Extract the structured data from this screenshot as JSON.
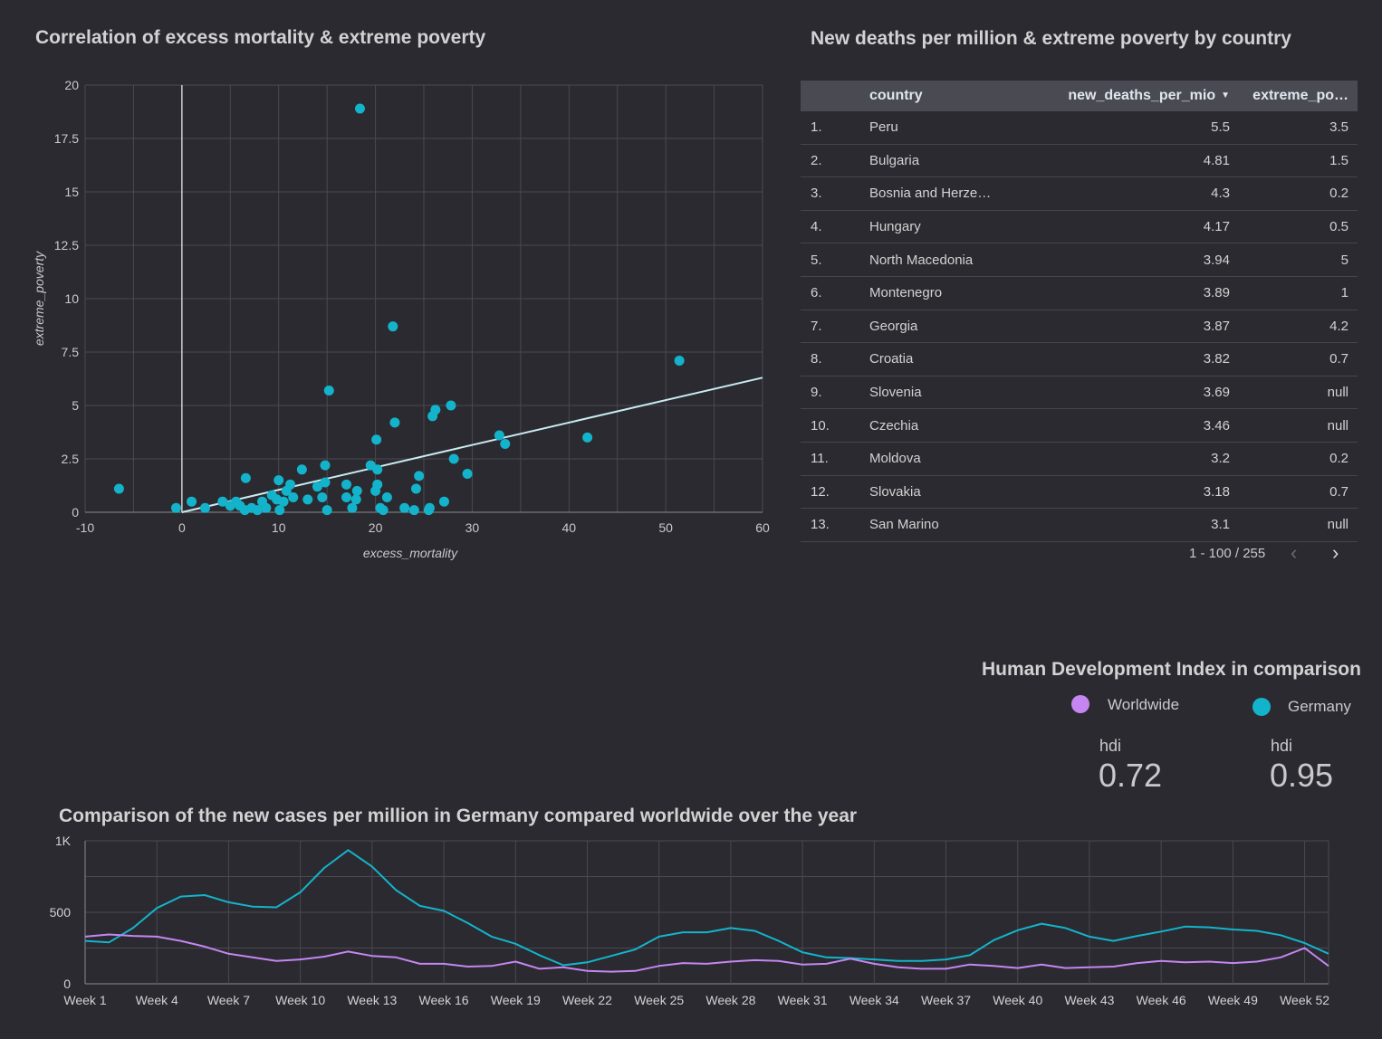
{
  "scatter": {
    "title": "Correlation of excess mortality & extreme poverty",
    "chart_data": {
      "type": "scatter",
      "xlabel": "excess_mortality",
      "ylabel": "extreme_poverty",
      "xlim": [
        -10,
        60
      ],
      "ylim": [
        0,
        20
      ],
      "x_ticks": [
        "-10",
        "0",
        "10",
        "20",
        "30",
        "40",
        "50",
        "60"
      ],
      "y_ticks": [
        "0",
        "2.5",
        "5",
        "7.5",
        "10",
        "12.5",
        "15",
        "17.5",
        "20"
      ],
      "points": [
        [
          -6.5,
          1.1
        ],
        [
          -0.6,
          0.2
        ],
        [
          1.0,
          0.5
        ],
        [
          2.4,
          0.2
        ],
        [
          4.2,
          0.5
        ],
        [
          5.0,
          0.3
        ],
        [
          5.6,
          0.5
        ],
        [
          6.0,
          0.3
        ],
        [
          6.5,
          0.1
        ],
        [
          6.6,
          1.6
        ],
        [
          7.2,
          0.2
        ],
        [
          7.8,
          0.1
        ],
        [
          8.3,
          0.5
        ],
        [
          8.7,
          0.2
        ],
        [
          9.3,
          0.8
        ],
        [
          9.8,
          0.6
        ],
        [
          10.0,
          1.5
        ],
        [
          10.1,
          0.1
        ],
        [
          10.5,
          0.5
        ],
        [
          10.8,
          1.0
        ],
        [
          11.2,
          1.3
        ],
        [
          11.5,
          0.7
        ],
        [
          12.4,
          2.0
        ],
        [
          13.0,
          0.6
        ],
        [
          14.0,
          1.2
        ],
        [
          14.5,
          0.7
        ],
        [
          14.8,
          2.2
        ],
        [
          14.8,
          1.4
        ],
        [
          15.0,
          0.1
        ],
        [
          15.2,
          5.7
        ],
        [
          17.0,
          0.7
        ],
        [
          17.0,
          1.3
        ],
        [
          17.6,
          0.2
        ],
        [
          18.0,
          0.6
        ],
        [
          18.1,
          1.0
        ],
        [
          18.4,
          18.9
        ],
        [
          19.5,
          2.2
        ],
        [
          20.0,
          1.0
        ],
        [
          20.2,
          1.3
        ],
        [
          20.1,
          3.4
        ],
        [
          20.2,
          2.0
        ],
        [
          20.5,
          0.2
        ],
        [
          20.8,
          0.1
        ],
        [
          21.2,
          0.7
        ],
        [
          21.8,
          8.7
        ],
        [
          22.0,
          4.2
        ],
        [
          23.0,
          0.2
        ],
        [
          24.0,
          0.1
        ],
        [
          24.2,
          1.1
        ],
        [
          24.5,
          1.7
        ],
        [
          25.5,
          0.1
        ],
        [
          25.6,
          0.2
        ],
        [
          25.9,
          4.5
        ],
        [
          26.2,
          4.8
        ],
        [
          27.1,
          0.5
        ],
        [
          27.8,
          5.0
        ],
        [
          28.1,
          2.5
        ],
        [
          29.5,
          1.8
        ],
        [
          32.8,
          3.6
        ],
        [
          33.4,
          3.2
        ],
        [
          41.9,
          3.5
        ],
        [
          51.4,
          7.1
        ]
      ],
      "trendline": [
        [
          0,
          0.0
        ],
        [
          60,
          6.3
        ]
      ]
    }
  },
  "table": {
    "title": "New deaths per million & extreme poverty by country",
    "columns": [
      "country",
      "new_deaths_per_mio",
      "extreme_po…"
    ],
    "rows": [
      {
        "idx": "1.",
        "country": "Peru",
        "new_deaths": "5.5",
        "extreme_poverty": "3.5"
      },
      {
        "idx": "2.",
        "country": "Bulgaria",
        "new_deaths": "4.81",
        "extreme_poverty": "1.5"
      },
      {
        "idx": "3.",
        "country": "Bosnia and Herze…",
        "new_deaths": "4.3",
        "extreme_poverty": "0.2"
      },
      {
        "idx": "4.",
        "country": "Hungary",
        "new_deaths": "4.17",
        "extreme_poverty": "0.5"
      },
      {
        "idx": "5.",
        "country": "North Macedonia",
        "new_deaths": "3.94",
        "extreme_poverty": "5"
      },
      {
        "idx": "6.",
        "country": "Montenegro",
        "new_deaths": "3.89",
        "extreme_poverty": "1"
      },
      {
        "idx": "7.",
        "country": "Georgia",
        "new_deaths": "3.87",
        "extreme_poverty": "4.2"
      },
      {
        "idx": "8.",
        "country": "Croatia",
        "new_deaths": "3.82",
        "extreme_poverty": "0.7"
      },
      {
        "idx": "9.",
        "country": "Slovenia",
        "new_deaths": "3.69",
        "extreme_poverty": "null"
      },
      {
        "idx": "10.",
        "country": "Czechia",
        "new_deaths": "3.46",
        "extreme_poverty": "null"
      },
      {
        "idx": "11.",
        "country": "Moldova",
        "new_deaths": "3.2",
        "extreme_poverty": "0.2"
      },
      {
        "idx": "12.",
        "country": "Slovakia",
        "new_deaths": "3.18",
        "extreme_poverty": "0.7"
      },
      {
        "idx": "13.",
        "country": "San Marino",
        "new_deaths": "3.1",
        "extreme_poverty": "null"
      }
    ],
    "pagination": "1 - 100 / 255"
  },
  "hdi": {
    "title": "Human Development Index in comparison",
    "legend": [
      {
        "label": "Worldwide",
        "color": "#c586f2"
      },
      {
        "label": "Germany",
        "color": "#13b4cb"
      }
    ],
    "metric_label": "hdi",
    "worldwide_value": "0.72",
    "germany_value": "0.95"
  },
  "linechart": {
    "title": "Comparison of the new cases per million in Germany compared worldwide over the year",
    "chart_data": {
      "type": "line",
      "ylim": [
        0,
        1000
      ],
      "y_ticks": [
        "0",
        "500",
        "1K"
      ],
      "x_tick_labels": [
        "Week 1",
        "Week 4",
        "Week 7",
        "Week 10",
        "Week 13",
        "Week 16",
        "Week 19",
        "Week 22",
        "Week 25",
        "Week 28",
        "Week 31",
        "Week 34",
        "Week 37",
        "Week 40",
        "Week 43",
        "Week 46",
        "Week 49",
        "Week 52"
      ],
      "weeks": [
        1,
        53
      ],
      "series": [
        {
          "name": "Germany",
          "color": "#13b4cb",
          "values": [
            300,
            290,
            390,
            530,
            610,
            620,
            570,
            540,
            535,
            640,
            810,
            935,
            820,
            655,
            545,
            510,
            425,
            330,
            280,
            200,
            130,
            150,
            195,
            240,
            330,
            360,
            360,
            390,
            370,
            300,
            220,
            185,
            180,
            170,
            160,
            160,
            170,
            200,
            305,
            375,
            420,
            390,
            330,
            300,
            335,
            365,
            400,
            395,
            380,
            370,
            340,
            285,
            210
          ]
        },
        {
          "name": "Worldwide",
          "color": "#c586f2",
          "values": [
            330,
            345,
            335,
            330,
            300,
            260,
            210,
            185,
            160,
            170,
            190,
            225,
            195,
            185,
            140,
            140,
            120,
            125,
            155,
            105,
            115,
            90,
            85,
            90,
            125,
            145,
            140,
            155,
            165,
            160,
            135,
            140,
            175,
            140,
            115,
            105,
            105,
            135,
            125,
            110,
            135,
            110,
            115,
            120,
            145,
            160,
            150,
            155,
            145,
            155,
            185,
            250,
            125
          ]
        }
      ]
    }
  }
}
